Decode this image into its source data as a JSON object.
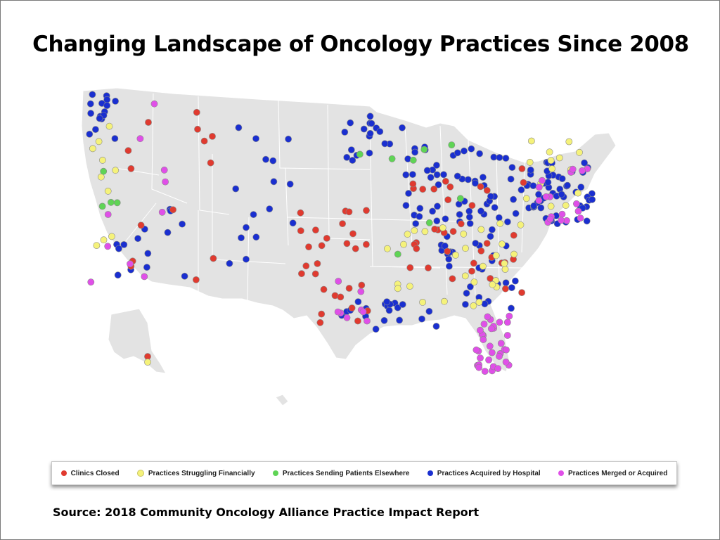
{
  "title": "Changing Landscape of Oncology Practices Since 2008",
  "source": "Source: 2018 Community Oncology Alliance Practice Impact Report",
  "legend": [
    {
      "key": "closed",
      "label": "Clinics Closed",
      "color": "#e03a2f"
    },
    {
      "key": "struggling",
      "label": "Practices Struggling Financially",
      "color": "#f5f27a"
    },
    {
      "key": "sending",
      "label": "Practices Sending Patients Elsewhere",
      "color": "#5fd455"
    },
    {
      "key": "acquired",
      "label": "Practices Acquired by Hospital",
      "color": "#1a2fd0"
    },
    {
      "key": "merged",
      "label": "Practices Merged or Acquired",
      "color": "#e04fe8"
    }
  ],
  "map": {
    "land_color": "#e3e3e3",
    "border_color": "#ffffff",
    "marker_density": {
      "closed": "scattered nationwide, concentrated in Texas, Midwest and Southeast",
      "struggling": "scattered, clusters in Southeast and Northeast",
      "sending": "few, scattered",
      "acquired": "dense in Northeast, Midwest, Southeast and Texas",
      "merged": "dense cluster in Florida, also Northeast"
    }
  }
}
